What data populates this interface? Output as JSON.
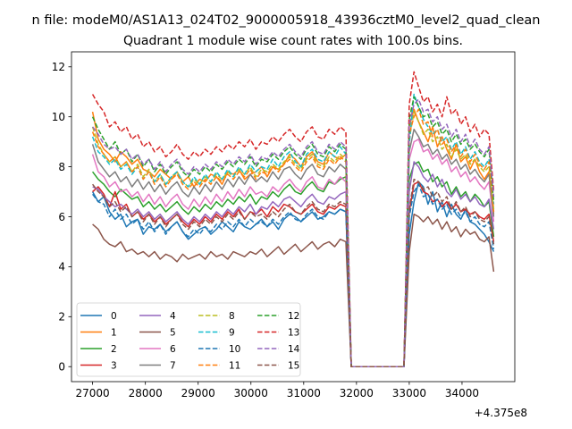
{
  "figure": {
    "suptitle": "n file: modeM0/AS1A13_024T02_9000005918_43936cztM0_level2_quad_clean",
    "offset_label": "+4.375e8"
  },
  "chart_data": {
    "type": "line",
    "title": "Quadrant 1 module wise count rates with 100.0s bins.",
    "xlabel": "",
    "ylabel": "",
    "xlim": [
      26600,
      35000
    ],
    "ylim": [
      -0.6,
      12.6
    ],
    "x_offset": 437500000,
    "x_ticks": [
      27000,
      28000,
      29000,
      30000,
      31000,
      32000,
      33000,
      34000
    ],
    "y_ticks": [
      0,
      2,
      4,
      6,
      8,
      10,
      12
    ],
    "grid": false,
    "legend_position": "lower-left",
    "legend_columns": 4,
    "series": [
      {
        "name": "0",
        "color": "#1f77b4",
        "dash": "solid",
        "values": [
          7.0,
          6.6,
          6.8,
          6.2,
          5.9,
          6.1,
          5.6,
          5.8,
          5.9,
          5.3,
          5.6,
          5.5,
          5.7,
          5.4,
          5.6,
          5.8,
          5.4,
          5.1,
          5.3,
          5.5,
          5.6,
          5.3,
          5.5,
          5.8,
          5.6,
          5.4,
          5.8,
          5.6,
          5.5,
          5.7,
          5.9,
          5.6,
          5.8,
          5.5,
          5.9,
          6.1,
          6.0,
          5.8,
          6.0,
          6.2,
          5.9,
          6.0,
          6.2,
          6.1,
          6.3,
          6.2
        ]
      },
      {
        "name": "1",
        "color": "#ff7f0e",
        "dash": "solid",
        "values": [
          10.2,
          9.1,
          8.7,
          8.5,
          8.2,
          8.6,
          8.4,
          8.1,
          8.3,
          7.9,
          7.8,
          7.6,
          7.9,
          7.7,
          7.5,
          7.8,
          7.4,
          7.6,
          7.2,
          7.5,
          7.4,
          7.7,
          7.6,
          7.3,
          7.8,
          7.7,
          7.9,
          7.5,
          7.7,
          7.8,
          8.0,
          7.6,
          8.0,
          7.9,
          8.1,
          8.5,
          8.3,
          8.0,
          8.4,
          8.6,
          8.2,
          8.1,
          8.6,
          8.4,
          8.3,
          8.5
        ]
      },
      {
        "name": "2",
        "color": "#2ca02c",
        "dash": "solid",
        "values": [
          7.8,
          7.5,
          7.3,
          7.0,
          6.8,
          7.1,
          6.9,
          6.7,
          6.8,
          6.4,
          6.6,
          6.3,
          6.5,
          6.2,
          6.4,
          6.6,
          6.3,
          6.1,
          6.4,
          6.2,
          6.5,
          6.3,
          6.6,
          6.4,
          6.7,
          6.5,
          6.8,
          6.6,
          6.9,
          6.5,
          6.8,
          6.7,
          7.0,
          6.8,
          7.1,
          7.3,
          7.0,
          6.9,
          7.2,
          7.4,
          7.1,
          7.0,
          7.4,
          7.3,
          7.5,
          7.6
        ]
      },
      {
        "name": "3",
        "color": "#d62728",
        "dash": "solid",
        "values": [
          7.0,
          7.2,
          6.9,
          6.4,
          7.0,
          6.3,
          6.5,
          6.0,
          6.2,
          5.9,
          6.1,
          5.8,
          6.0,
          5.7,
          5.9,
          6.1,
          5.8,
          5.6,
          5.9,
          5.7,
          6.0,
          5.8,
          6.1,
          5.9,
          6.2,
          6.0,
          6.3,
          5.9,
          6.2,
          6.1,
          6.3,
          6.0,
          6.4,
          6.2,
          6.5,
          6.4,
          6.2,
          6.1,
          6.3,
          6.5,
          6.2,
          6.1,
          6.4,
          6.3,
          6.5,
          6.4
        ]
      },
      {
        "name": "4",
        "color": "#9467bd",
        "dash": "solid",
        "values": [
          7.2,
          7.1,
          6.8,
          6.6,
          6.4,
          6.5,
          6.3,
          6.1,
          6.3,
          6.0,
          6.2,
          5.9,
          6.1,
          5.8,
          6.0,
          6.2,
          5.9,
          5.7,
          6.0,
          5.8,
          6.1,
          5.9,
          6.2,
          6.0,
          6.3,
          6.1,
          6.4,
          6.2,
          6.5,
          6.1,
          6.4,
          6.3,
          6.6,
          6.4,
          6.7,
          6.8,
          6.6,
          6.4,
          6.7,
          6.9,
          6.6,
          6.5,
          6.8,
          6.7,
          6.9,
          7.0
        ]
      },
      {
        "name": "5",
        "color": "#8c564b",
        "dash": "solid",
        "values": [
          5.7,
          5.5,
          5.1,
          4.9,
          4.8,
          5.0,
          4.6,
          4.7,
          4.5,
          4.6,
          4.4,
          4.6,
          4.3,
          4.5,
          4.4,
          4.2,
          4.5,
          4.3,
          4.4,
          4.5,
          4.3,
          4.6,
          4.4,
          4.5,
          4.3,
          4.6,
          4.5,
          4.4,
          4.6,
          4.5,
          4.7,
          4.4,
          4.6,
          4.8,
          4.5,
          4.7,
          4.9,
          4.6,
          4.8,
          5.0,
          4.7,
          4.9,
          5.0,
          4.8,
          5.1,
          5.0
        ]
      },
      {
        "name": "6",
        "color": "#e377c2",
        "dash": "solid",
        "values": [
          8.5,
          7.8,
          7.6,
          7.2,
          7.4,
          7.0,
          7.1,
          6.8,
          7.0,
          6.6,
          6.9,
          6.5,
          6.8,
          6.4,
          6.7,
          6.9,
          6.5,
          6.3,
          6.7,
          6.4,
          6.8,
          6.5,
          6.9,
          6.6,
          7.0,
          6.7,
          7.1,
          6.8,
          7.2,
          6.9,
          7.0,
          6.8,
          7.2,
          7.0,
          7.3,
          7.5,
          7.2,
          7.0,
          7.4,
          7.6,
          7.2,
          7.1,
          7.5,
          7.3,
          7.6,
          7.4
        ]
      },
      {
        "name": "7",
        "color": "#7f7f7f",
        "dash": "solid",
        "values": [
          8.9,
          8.2,
          7.9,
          7.6,
          7.8,
          7.4,
          7.6,
          7.2,
          7.5,
          7.1,
          7.4,
          7.0,
          7.3,
          6.9,
          7.2,
          7.4,
          7.0,
          6.8,
          7.2,
          6.9,
          7.3,
          7.0,
          7.4,
          7.1,
          7.5,
          7.2,
          7.6,
          7.3,
          7.7,
          7.4,
          7.6,
          7.4,
          7.8,
          7.5,
          7.9,
          8.0,
          7.7,
          7.5,
          7.9,
          8.1,
          7.7,
          7.6,
          8.0,
          7.8,
          8.1,
          7.9
        ]
      },
      {
        "name": "8",
        "color": "#bcbd22",
        "dash": "dashed",
        "values": [
          9.6,
          8.9,
          8.5,
          8.2,
          8.4,
          8.0,
          8.2,
          7.8,
          8.1,
          7.6,
          7.9,
          7.4,
          7.7,
          7.3,
          7.6,
          7.8,
          7.4,
          7.2,
          7.5,
          7.3,
          7.6,
          7.4,
          7.7,
          7.5,
          7.8,
          7.6,
          7.9,
          7.7,
          8.0,
          7.6,
          7.9,
          7.8,
          8.1,
          7.9,
          8.2,
          8.4,
          8.1,
          7.9,
          8.3,
          8.5,
          8.1,
          8.0,
          8.4,
          8.2,
          8.5,
          8.3
        ]
      },
      {
        "name": "9",
        "color": "#17becf",
        "dash": "dashed",
        "values": [
          9.2,
          8.6,
          8.4,
          8.1,
          8.3,
          7.9,
          8.1,
          7.7,
          8.0,
          7.5,
          7.8,
          7.4,
          7.7,
          7.3,
          7.6,
          7.8,
          7.4,
          7.2,
          7.6,
          7.3,
          7.7,
          7.4,
          7.8,
          7.5,
          7.9,
          7.6,
          8.0,
          7.7,
          8.1,
          7.8,
          8.0,
          7.9,
          8.3,
          8.0,
          8.4,
          8.6,
          8.2,
          8.0,
          8.5,
          8.7,
          8.3,
          8.2,
          8.6,
          8.4,
          8.8,
          8.5
        ]
      },
      {
        "name": "10",
        "color": "#1f77b4",
        "dash": "dashed",
        "values": [
          6.9,
          6.6,
          6.5,
          6.0,
          6.3,
          5.9,
          6.1,
          5.7,
          5.9,
          5.5,
          5.8,
          5.4,
          5.7,
          5.3,
          5.6,
          5.8,
          5.4,
          5.2,
          5.5,
          5.3,
          5.6,
          5.4,
          5.7,
          5.5,
          5.8,
          5.6,
          5.9,
          5.6,
          5.9,
          5.7,
          5.8,
          5.6,
          5.9,
          5.7,
          6.0,
          6.2,
          5.9,
          5.8,
          6.1,
          6.3,
          6.0,
          5.9,
          6.2,
          6.1,
          6.3,
          6.2
        ]
      },
      {
        "name": "11",
        "color": "#ff7f0e",
        "dash": "dashed",
        "values": [
          9.4,
          8.8,
          8.5,
          8.2,
          8.4,
          8.0,
          8.2,
          7.8,
          8.0,
          7.5,
          7.8,
          7.3,
          7.6,
          7.2,
          7.5,
          7.7,
          7.3,
          7.1,
          7.4,
          7.2,
          7.5,
          7.3,
          7.6,
          7.4,
          7.7,
          7.5,
          7.8,
          7.6,
          7.9,
          7.5,
          7.8,
          7.7,
          8.0,
          7.8,
          8.1,
          8.3,
          8.0,
          7.8,
          8.2,
          8.4,
          8.0,
          7.9,
          8.3,
          8.1,
          8.4,
          8.2
        ]
      },
      {
        "name": "12",
        "color": "#2ca02c",
        "dash": "dashed",
        "values": [
          10.0,
          9.5,
          9.1,
          8.7,
          9.0,
          8.5,
          8.7,
          8.2,
          8.5,
          8.0,
          8.3,
          7.8,
          8.1,
          7.7,
          8.0,
          8.2,
          7.8,
          7.6,
          7.9,
          7.7,
          8.0,
          7.8,
          8.1,
          7.9,
          8.2,
          8.0,
          8.3,
          8.1,
          8.4,
          8.0,
          8.3,
          8.2,
          8.5,
          8.3,
          8.6,
          8.8,
          8.5,
          8.3,
          8.7,
          8.9,
          8.5,
          8.4,
          8.8,
          8.6,
          8.9,
          8.7
        ]
      },
      {
        "name": "13",
        "color": "#d62728",
        "dash": "dashed",
        "values": [
          10.9,
          10.5,
          10.2,
          9.6,
          9.8,
          9.4,
          9.6,
          9.1,
          9.3,
          8.8,
          9.0,
          8.6,
          8.8,
          8.4,
          8.6,
          8.9,
          8.5,
          8.3,
          8.6,
          8.4,
          8.7,
          8.5,
          8.8,
          8.6,
          8.9,
          8.7,
          9.0,
          8.8,
          9.1,
          8.7,
          9.0,
          8.9,
          9.2,
          9.0,
          9.3,
          9.5,
          9.2,
          9.0,
          9.4,
          9.6,
          9.2,
          9.1,
          9.5,
          9.3,
          9.6,
          9.4
        ]
      },
      {
        "name": "14",
        "color": "#9467bd",
        "dash": "dashed",
        "values": [
          9.6,
          9.3,
          8.9,
          8.7,
          8.8,
          8.5,
          8.7,
          8.3,
          8.5,
          8.1,
          8.3,
          7.9,
          8.2,
          7.8,
          8.1,
          8.3,
          7.9,
          7.7,
          8.0,
          7.8,
          8.1,
          7.9,
          8.2,
          8.0,
          8.3,
          8.1,
          8.4,
          8.2,
          8.5,
          8.1,
          8.4,
          8.3,
          8.6,
          8.4,
          8.7,
          8.9,
          8.6,
          8.4,
          8.8,
          9.0,
          8.6,
          8.5,
          8.9,
          8.7,
          9.0,
          8.8
        ]
      },
      {
        "name": "15",
        "color": "#8c564b",
        "dash": "dashed",
        "values": [
          7.3,
          7.0,
          6.8,
          6.4,
          6.6,
          6.2,
          6.4,
          6.0,
          6.2,
          5.8,
          6.1,
          5.7,
          6.0,
          5.6,
          5.9,
          6.1,
          5.7,
          5.5,
          5.8,
          5.6,
          5.9,
          5.7,
          6.0,
          5.8,
          6.1,
          5.9,
          6.2,
          5.9,
          6.2,
          6.0,
          6.1,
          5.9,
          6.2,
          6.0,
          6.3,
          6.5,
          6.2,
          6.1,
          6.4,
          6.6,
          6.3,
          6.2,
          6.5,
          6.4,
          6.6,
          6.5
        ]
      }
    ],
    "segment2_values": [
      [
        5.3,
        6.6,
        7.4,
        7.2,
        6.5,
        7.0,
        6.2,
        6.6,
        6.0,
        6.5,
        6.1,
        5.9,
        6.3,
        5.8,
        5.7,
        5.5,
        5.3,
        5.0,
        4.6
      ],
      [
        9.6,
        10.3,
        9.8,
        9.4,
        9.0,
        9.6,
        8.8,
        9.2,
        8.7,
        8.3,
        8.9,
        8.2,
        8.4,
        7.9,
        8.3,
        7.8,
        7.5,
        7.8,
        6.1
      ],
      [
        7.5,
        8.1,
        8.2,
        7.8,
        7.9,
        7.4,
        7.6,
        7.2,
        7.4,
        6.9,
        7.2,
        6.8,
        7.0,
        6.6,
        6.9,
        6.7,
        6.4,
        6.6,
        5.2
      ],
      [
        6.2,
        7.3,
        7.4,
        7.0,
        6.9,
        6.6,
        6.7,
        6.4,
        6.6,
        6.3,
        6.5,
        6.2,
        6.3,
        6.1,
        6.2,
        6.0,
        5.9,
        6.1,
        5.0
      ],
      [
        7.0,
        8.2,
        8.0,
        7.6,
        7.4,
        7.7,
        7.2,
        7.5,
        7.0,
        6.8,
        7.1,
        6.7,
        6.9,
        6.6,
        6.8,
        6.5,
        6.4,
        6.7,
        5.5
      ],
      [
        4.6,
        6.1,
        6.0,
        5.8,
        6.0,
        5.7,
        5.9,
        5.5,
        5.8,
        5.4,
        5.6,
        5.2,
        5.5,
        5.3,
        5.4,
        5.1,
        5.0,
        5.2,
        3.8
      ],
      [
        8.3,
        9.0,
        9.1,
        8.6,
        8.7,
        8.3,
        8.5,
        8.1,
        8.3,
        7.8,
        8.0,
        7.6,
        7.8,
        7.4,
        7.6,
        7.3,
        7.1,
        7.4,
        5.8
      ],
      [
        8.6,
        9.5,
        9.2,
        8.8,
        8.9,
        8.5,
        8.7,
        8.3,
        8.5,
        8.1,
        8.3,
        7.9,
        8.1,
        7.7,
        7.9,
        7.6,
        7.4,
        7.7,
        6.0
      ],
      [
        9.1,
        10.2,
        9.8,
        9.3,
        9.5,
        9.0,
        9.2,
        8.7,
        8.9,
        8.4,
        8.7,
        8.3,
        8.5,
        8.1,
        8.3,
        8.0,
        7.8,
        8.0,
        6.3
      ],
      [
        8.9,
        10.9,
        10.4,
        9.9,
        9.6,
        9.3,
        9.5,
        9.0,
        9.2,
        8.7,
        9.0,
        8.5,
        8.8,
        8.3,
        8.6,
        8.2,
        8.0,
        8.3,
        6.5
      ],
      [
        6.0,
        7.0,
        7.3,
        6.8,
        6.9,
        6.5,
        6.7,
        6.3,
        6.5,
        6.1,
        6.3,
        6.0,
        6.2,
        5.8,
        6.0,
        5.7,
        5.6,
        5.8,
        4.7
      ],
      [
        9.3,
        10.0,
        10.3,
        9.7,
        9.8,
        9.2,
        9.5,
        8.9,
        9.1,
        8.6,
        8.9,
        8.4,
        8.7,
        8.2,
        8.5,
        8.1,
        7.9,
        8.2,
        6.2
      ],
      [
        9.9,
        10.8,
        10.4,
        10.0,
        10.1,
        9.6,
        9.8,
        9.3,
        9.5,
        9.0,
        9.3,
        8.9,
        9.1,
        8.7,
        8.9,
        8.6,
        8.4,
        8.7,
        6.6
      ],
      [
        10.5,
        11.8,
        11.2,
        10.6,
        10.8,
        10.2,
        10.5,
        10.0,
        10.8,
        10.1,
        10.3,
        9.7,
        10.0,
        9.4,
        9.7,
        9.2,
        9.5,
        9.3,
        7.0
      ],
      [
        9.7,
        10.5,
        10.7,
        10.2,
        10.3,
        9.8,
        10.0,
        9.5,
        9.7,
        9.2,
        9.5,
        9.0,
        9.3,
        8.8,
        9.1,
        8.7,
        8.5,
        8.8,
        6.8
      ],
      [
        6.3,
        7.5,
        7.4,
        7.1,
        7.2,
        6.8,
        7.0,
        6.6,
        6.8,
        6.3,
        6.6,
        6.2,
        6.4,
        6.0,
        6.2,
        5.9,
        5.8,
        6.0,
        4.9
      ]
    ],
    "segment1_x_start": 27000,
    "segment1_x_end": 31800,
    "gap_x_start": 31900,
    "gap_x_end": 32900,
    "segment2_x_start": 33000,
    "segment2_x_end": 34600
  }
}
